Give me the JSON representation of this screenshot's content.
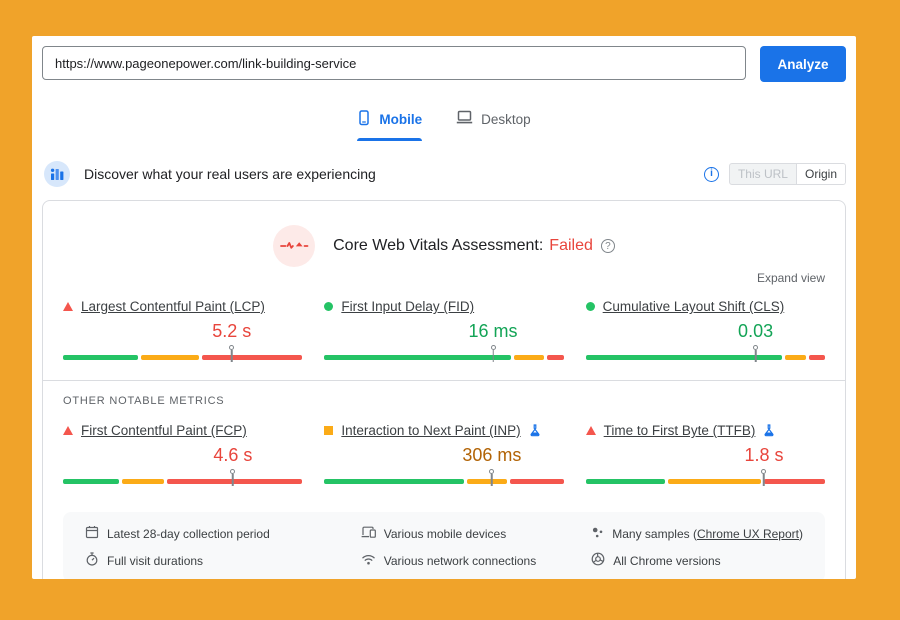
{
  "url_bar": {
    "value": "https://www.pageonepower.com/link-building-service",
    "analyze_label": "Analyze"
  },
  "tabs": [
    {
      "label": "Mobile",
      "active": true
    },
    {
      "label": "Desktop",
      "active": false
    }
  ],
  "field_header": {
    "title": "Discover what your real users are experiencing",
    "toggle": {
      "this_url": "This URL",
      "origin": "Origin",
      "selected": "Origin"
    }
  },
  "assessment": {
    "prefix": "Core Web Vitals Assessment:",
    "status": "Failed",
    "expand_label": "Expand view"
  },
  "core_metrics": [
    {
      "name": "Largest Contentful Paint (LCP)",
      "status": "poor",
      "value": "5.2 s",
      "experimental": false,
      "bar": {
        "good": 32,
        "ni": 25,
        "poor": 43
      },
      "marker_pct": 70.5
    },
    {
      "name": "First Input Delay (FID)",
      "status": "good",
      "value": "16 ms",
      "experimental": false,
      "bar": {
        "good": 80,
        "ni": 13,
        "poor": 7
      },
      "marker_pct": 70.5
    },
    {
      "name": "Cumulative Layout Shift (CLS)",
      "status": "good",
      "value": "0.03",
      "experimental": false,
      "bar": {
        "good": 84,
        "ni": 9,
        "poor": 7
      },
      "marker_pct": 71
    }
  ],
  "other_metrics_label": "OTHER NOTABLE METRICS",
  "other_metrics": [
    {
      "name": "First Contentful Paint (FCP)",
      "status": "poor",
      "value": "4.6 s",
      "experimental": false,
      "bar": {
        "good": 24,
        "ni": 18,
        "poor": 58
      },
      "marker_pct": 71
    },
    {
      "name": "Interaction to Next Paint (INP)",
      "status": "ni",
      "value": "306 ms",
      "experimental": true,
      "bar": {
        "good": 60,
        "ni": 17,
        "poor": 23
      },
      "marker_pct": 70
    },
    {
      "name": "Time to First Byte (TTFB)",
      "status": "poor",
      "value": "1.8 s",
      "experimental": true,
      "bar": {
        "good": 34,
        "ni": 40,
        "poor": 26
      },
      "marker_pct": 74.5
    }
  ],
  "footer": {
    "items": [
      {
        "icon": "calendar-icon",
        "text": "Latest 28-day collection period"
      },
      {
        "icon": "stopwatch-icon",
        "text": "Full visit durations"
      },
      {
        "icon": "devices-icon",
        "text": "Various mobile devices"
      },
      {
        "icon": "network-icon",
        "text": "Various network connections"
      },
      {
        "icon": "samples-icon",
        "text_prefix": "Many samples (",
        "link_text": "Chrome UX Report",
        "text_suffix": ")"
      },
      {
        "icon": "chrome-icon",
        "text": "All Chrome versions"
      }
    ]
  },
  "colors": {
    "accent-blue": "#1a73e8",
    "good": "#24c365",
    "needs-improvement": "#fbab17",
    "poor": "#f4564d",
    "good-text": "#13a456",
    "ni-text": "#b26305",
    "poor-text": "#e8453c",
    "page-orange": "#f0a32a"
  }
}
